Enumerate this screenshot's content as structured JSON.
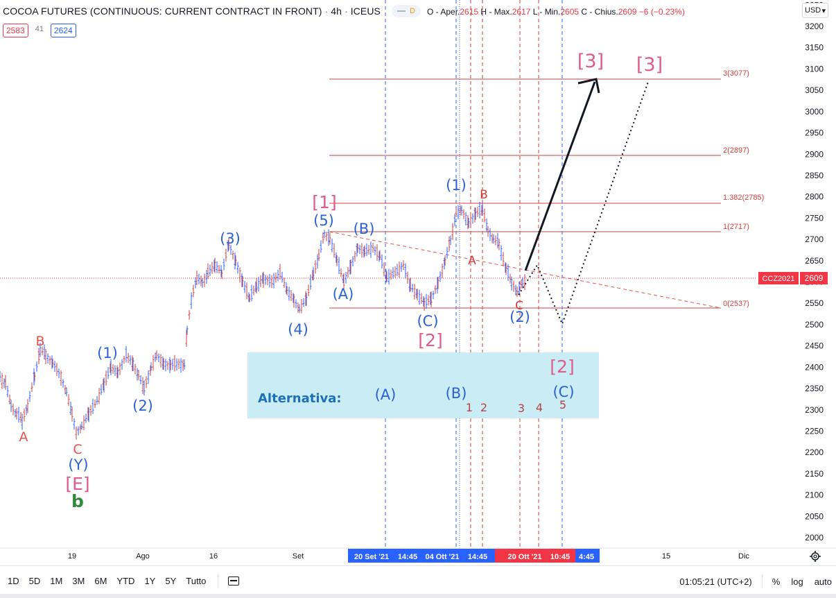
{
  "header": {
    "symbol": "COCOA FUTURES (CONTINUOUS: CURRENT CONTRACT IN FRONT)",
    "interval": "4h",
    "exchange": "ICEUS",
    "indicator_flag": "D"
  },
  "ohlc": {
    "open_label": "O - Aper.",
    "open": "2615",
    "high_label": "H - Max.",
    "high": "2617",
    "low_label": "L - Min.",
    "low": "2605",
    "close_label": "C - Chius.",
    "close": "2609",
    "change": "−6 (−0.23%)"
  },
  "badges": {
    "left_price": "2583",
    "spread": "41",
    "right_price": "2624"
  },
  "currency_selector": "USD",
  "price_axis": {
    "ticks": [
      "3250",
      "3200",
      "3150",
      "3100",
      "3050",
      "3000",
      "2950",
      "2900",
      "2850",
      "2800",
      "2750",
      "2700",
      "2650",
      "2600",
      "2550",
      "2500",
      "2450",
      "2400",
      "2350",
      "2300",
      "2250",
      "2200",
      "2150",
      "2100",
      "2050",
      "2000"
    ],
    "symbol_tag": "CCZ2021",
    "last_price": "2609"
  },
  "time_axis": {
    "labels": [
      "19",
      "Ago",
      "16",
      "Set",
      "15",
      "Dic"
    ],
    "selected_range": [
      "20 Set '21",
      "14:45",
      "04 Ott '21",
      "14:45",
      "20 Ott '21",
      "10:45",
      "4:45"
    ]
  },
  "fib_levels": [
    {
      "label": "3(3077)",
      "value": 3077
    },
    {
      "label": "2(2897)",
      "value": 2897
    },
    {
      "label": "1.382(2785)",
      "value": 2785
    },
    {
      "label": "1(2717)",
      "value": 2717
    },
    {
      "label": "0(2537)",
      "value": 2537
    }
  ],
  "wave_labels": {
    "A_start": "A",
    "B_start": "B",
    "C_start": "C",
    "Y": "(Y)",
    "E": "[E]",
    "b": "b",
    "w1": "(1)",
    "w2": "(2)",
    "w3": "(3)",
    "w4": "(4)",
    "w5": "(5)",
    "major1": "[1]",
    "A2": "(A)",
    "B2": "(B)",
    "C2": "(C)",
    "major2": "[2]",
    "w1b": "(1)",
    "wB": "B",
    "wA": "A",
    "wC": "C",
    "w2b": "(2)",
    "target1": "[3]",
    "target2": "[3]"
  },
  "alternative": {
    "title": "Alternativa:",
    "A": "(A)",
    "B": "(B)",
    "C": "(C)",
    "major": "[2]",
    "nums": [
      "1",
      "2",
      "3",
      "4",
      "5"
    ]
  },
  "toolbar": {
    "timeframes": [
      "1D",
      "5D",
      "1M",
      "3M",
      "6M",
      "YTD",
      "1Y",
      "5Y",
      "Tutto"
    ],
    "clock": "01:05:21 (UTC+2)",
    "percent": "%",
    "log": "log",
    "auto": "auto"
  },
  "colors": {
    "up_down_bar": "#2962ff",
    "red_wave": "#e8524a",
    "pink_wave": "#e05a8c",
    "blue_wave": "#2a62d6",
    "green": "#2e8b3a",
    "fib_line": "#d23f3f",
    "alt_box": "#c9ecf5"
  }
}
